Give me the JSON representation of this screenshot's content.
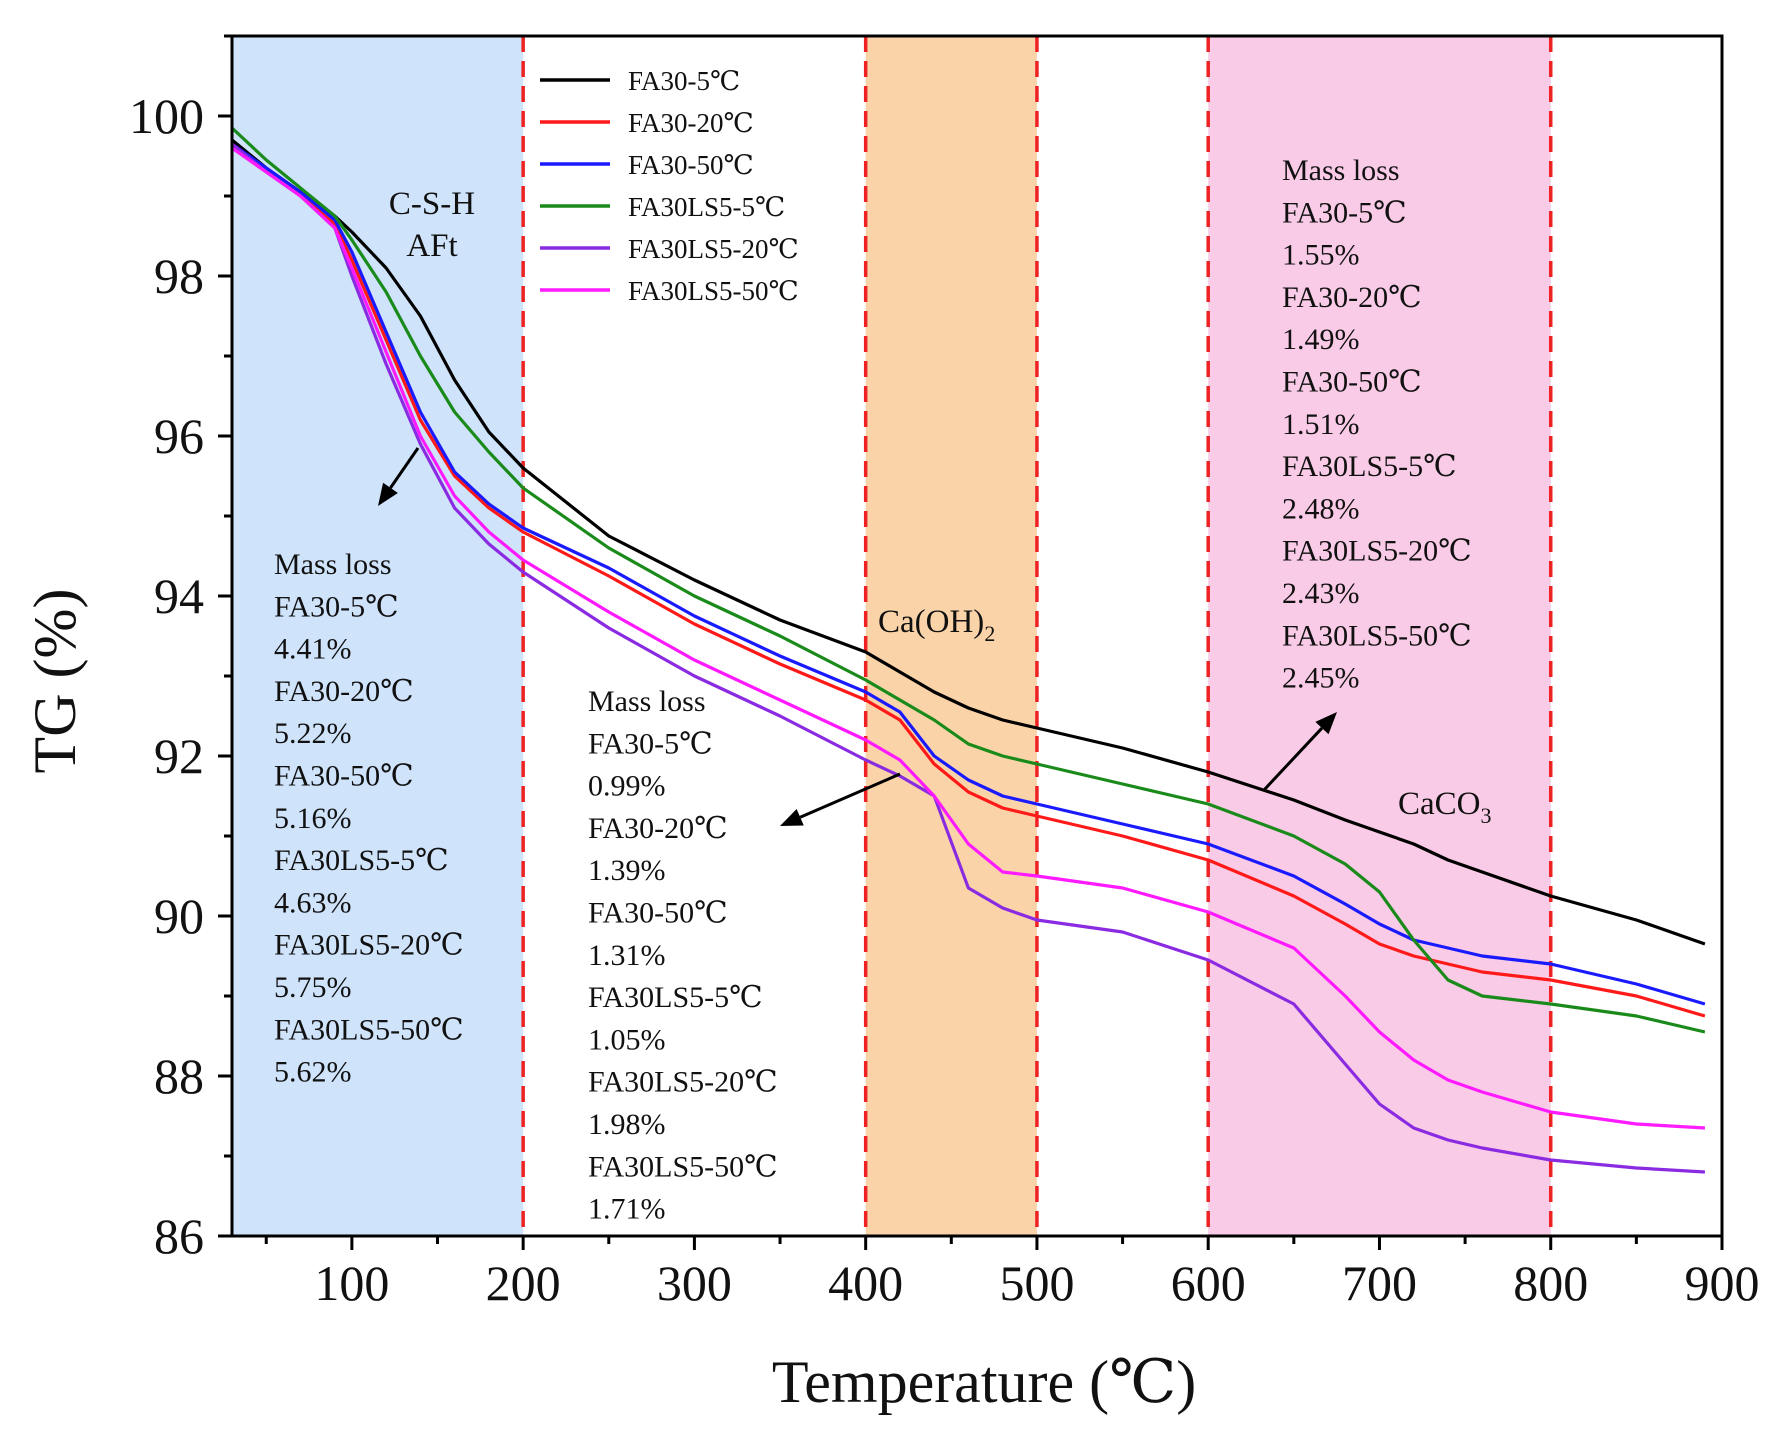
{
  "chart_data": {
    "type": "line",
    "xlabel": "Temperature (℃)",
    "ylabel": "TG (%)",
    "xlim": [
      30,
      900
    ],
    "ylim": [
      86,
      101
    ],
    "xticks": [
      100,
      200,
      300,
      400,
      500,
      600,
      700,
      800,
      900
    ],
    "yticks": [
      86,
      88,
      90,
      92,
      94,
      96,
      98,
      100
    ],
    "regions": [
      {
        "from": 30,
        "to": 200,
        "color": "#cfe3fb"
      },
      {
        "from": 400,
        "to": 500,
        "color": "#fad4a8"
      },
      {
        "from": 600,
        "to": 800,
        "color": "#f9cbe6"
      }
    ],
    "dashed_lines_x": [
      200,
      400,
      500,
      600,
      800
    ],
    "x": [
      30,
      50,
      70,
      90,
      100,
      120,
      140,
      160,
      180,
      200,
      250,
      300,
      350,
      400,
      420,
      440,
      460,
      480,
      500,
      550,
      600,
      650,
      680,
      700,
      720,
      740,
      760,
      800,
      850,
      890
    ],
    "series": [
      {
        "name": "FA30-5℃",
        "color": "#000000",
        "values": [
          99.7,
          99.35,
          99.05,
          98.75,
          98.55,
          98.1,
          97.5,
          96.7,
          96.05,
          95.6,
          94.75,
          94.2,
          93.7,
          93.3,
          93.05,
          92.8,
          92.6,
          92.45,
          92.35,
          92.1,
          91.8,
          91.45,
          91.2,
          91.05,
          90.9,
          90.7,
          90.55,
          90.25,
          89.95,
          89.65
        ]
      },
      {
        "name": "FA30-20℃",
        "color": "#ff1a1a",
        "values": [
          99.6,
          99.3,
          99.0,
          98.65,
          98.2,
          97.2,
          96.2,
          95.5,
          95.1,
          94.8,
          94.25,
          93.65,
          93.15,
          92.7,
          92.45,
          91.9,
          91.55,
          91.35,
          91.25,
          91.0,
          90.7,
          90.25,
          89.9,
          89.65,
          89.5,
          89.4,
          89.3,
          89.2,
          89.0,
          88.75
        ]
      },
      {
        "name": "FA30-50℃",
        "color": "#1a1aff",
        "values": [
          99.65,
          99.35,
          99.05,
          98.7,
          98.3,
          97.3,
          96.3,
          95.55,
          95.15,
          94.85,
          94.35,
          93.75,
          93.25,
          92.8,
          92.55,
          92.0,
          91.7,
          91.5,
          91.4,
          91.15,
          90.9,
          90.5,
          90.15,
          89.9,
          89.7,
          89.6,
          89.5,
          89.4,
          89.15,
          88.9
        ]
      },
      {
        "name": "FA30LS5-5℃",
        "color": "#1a8a1a",
        "values": [
          99.85,
          99.45,
          99.1,
          98.75,
          98.45,
          97.8,
          97.0,
          96.3,
          95.8,
          95.35,
          94.6,
          94.0,
          93.5,
          92.95,
          92.7,
          92.45,
          92.15,
          92.0,
          91.9,
          91.65,
          91.4,
          91.0,
          90.65,
          90.3,
          89.7,
          89.2,
          89.0,
          88.9,
          88.75,
          88.55
        ]
      },
      {
        "name": "FA30LS5-20℃",
        "color": "#8a2be2",
        "values": [
          99.65,
          99.3,
          99.0,
          98.6,
          98.0,
          96.9,
          95.9,
          95.1,
          94.65,
          94.3,
          93.6,
          93.0,
          92.5,
          91.95,
          91.75,
          91.5,
          90.35,
          90.1,
          89.95,
          89.8,
          89.45,
          88.9,
          88.15,
          87.65,
          87.35,
          87.2,
          87.1,
          86.95,
          86.85,
          86.8
        ]
      },
      {
        "name": "FA30LS5-50℃",
        "color": "#ff1aff",
        "values": [
          99.6,
          99.3,
          99.0,
          98.6,
          98.1,
          97.05,
          96.0,
          95.25,
          94.8,
          94.45,
          93.8,
          93.2,
          92.7,
          92.2,
          91.95,
          91.5,
          90.9,
          90.55,
          90.5,
          90.35,
          90.05,
          89.6,
          89.0,
          88.55,
          88.2,
          87.95,
          87.8,
          87.55,
          87.4,
          87.35
        ]
      }
    ],
    "region_labels": [
      {
        "lines": [
          "C-S-H",
          "AFt"
        ]
      },
      {
        "text": "Ca(OH)",
        "sub": "2"
      },
      {
        "text": "CaCO",
        "sub": "3"
      }
    ],
    "annotations": [
      {
        "lines": [
          "Mass loss",
          "FA30-5℃",
          "4.41%",
          "FA30-20℃",
          "5.22%",
          "FA30-50℃",
          "5.16%",
          "FA30LS5-5℃",
          "4.63%",
          "FA30LS5-20℃",
          "5.75%",
          "FA30LS5-50℃",
          "5.62%"
        ]
      },
      {
        "lines": [
          "Mass loss",
          "FA30-5℃",
          "0.99%",
          "FA30-20℃",
          "1.39%",
          "FA30-50℃",
          "1.31%",
          "FA30LS5-5℃",
          "1.05%",
          "FA30LS5-20℃",
          "1.98%",
          "FA30LS5-50℃",
          "1.71%"
        ]
      },
      {
        "lines": [
          "Mass loss",
          "FA30-5℃",
          "1.55%",
          "FA30-20℃",
          "1.49%",
          "FA30-50℃",
          "1.51%",
          "FA30LS5-5℃",
          "2.48%",
          "FA30LS5-20℃",
          "2.43%",
          "FA30LS5-50℃",
          "2.45%"
        ]
      }
    ]
  }
}
